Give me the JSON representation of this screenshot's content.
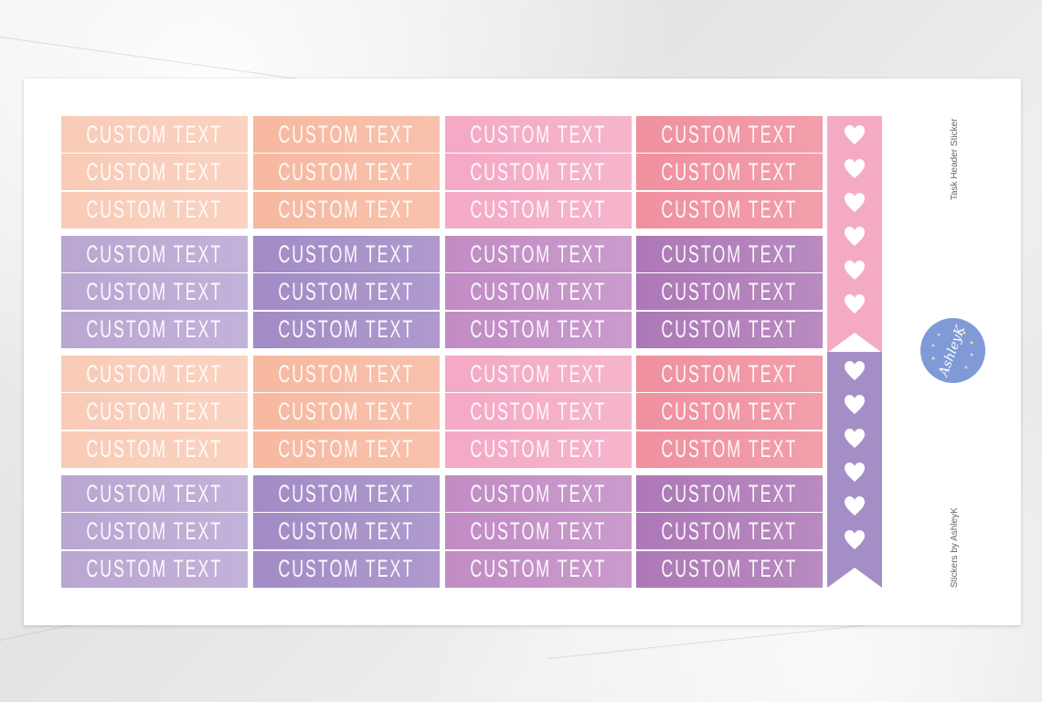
{
  "colors": {
    "peach": [
      "#f9cbb7",
      "#f7b8a0",
      "#f4a9c5",
      "#f0909f"
    ],
    "purple": [
      "#b9a6d2",
      "#a28bc6",
      "#c18cc4",
      "#ad78b6"
    ],
    "flag_pink": "#f4aac5",
    "flag_purple": "#a48ec6",
    "logo_blue": "#7f9ad6"
  },
  "groups": [
    {
      "palette": "peach",
      "rows": [
        [
          "CUSTOM TEXT",
          "CUSTOM TEXT",
          "CUSTOM TEXT",
          "CUSTOM TEXT"
        ],
        [
          "CUSTOM TEXT",
          "CUSTOM TEXT",
          "CUSTOM TEXT",
          "CUSTOM TEXT"
        ],
        [
          "CUSTOM TEXT",
          "CUSTOM TEXT",
          "CUSTOM TEXT",
          "CUSTOM TEXT"
        ]
      ]
    },
    {
      "palette": "purple",
      "rows": [
        [
          "CUSTOM TEXT",
          "CUSTOM TEXT",
          "CUSTOM TEXT",
          "CUSTOM TEXT"
        ],
        [
          "CUSTOM TEXT",
          "CUSTOM TEXT",
          "CUSTOM TEXT",
          "CUSTOM TEXT"
        ],
        [
          "CUSTOM TEXT",
          "CUSTOM TEXT",
          "CUSTOM TEXT",
          "CUSTOM TEXT"
        ]
      ]
    },
    {
      "palette": "peach",
      "rows": [
        [
          "CUSTOM TEXT",
          "CUSTOM TEXT",
          "CUSTOM TEXT",
          "CUSTOM TEXT"
        ],
        [
          "CUSTOM TEXT",
          "CUSTOM TEXT",
          "CUSTOM TEXT",
          "CUSTOM TEXT"
        ],
        [
          "CUSTOM TEXT",
          "CUSTOM TEXT",
          "CUSTOM TEXT",
          "CUSTOM TEXT"
        ]
      ]
    },
    {
      "palette": "purple",
      "rows": [
        [
          "CUSTOM TEXT",
          "CUSTOM TEXT",
          "CUSTOM TEXT",
          "CUSTOM TEXT"
        ],
        [
          "CUSTOM TEXT",
          "CUSTOM TEXT",
          "CUSTOM TEXT",
          "CUSTOM TEXT"
        ],
        [
          "CUSTOM TEXT",
          "CUSTOM TEXT",
          "CUSTOM TEXT",
          "CUSTOM TEXT"
        ]
      ]
    }
  ],
  "flag": {
    "hearts_per_section": 6,
    "icon": "heart-icon"
  },
  "side": {
    "title": "Task Header  Sticker",
    "brand": "Stickers by AshleyK"
  },
  "logo": {
    "text": "by AshleyK"
  }
}
